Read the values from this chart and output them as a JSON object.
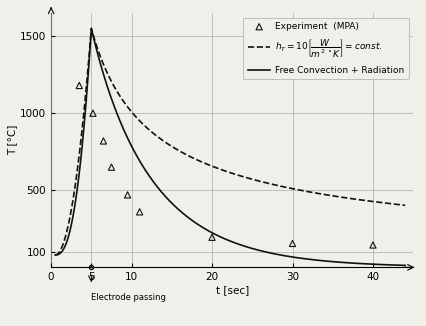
{
  "title": "",
  "xlabel": "t [sec]",
  "ylabel": "T [°C]",
  "xlim": [
    0,
    45
  ],
  "ylim": [
    0,
    1650
  ],
  "xticks": [
    0,
    5,
    10,
    20,
    30,
    40
  ],
  "yticks": [
    100,
    500,
    1000,
    1500
  ],
  "grid_color": "#aaaaaa",
  "background_color": "#f0f0eb",
  "experiment_x": [
    3.5,
    5.2,
    6.5,
    7.5,
    9.5,
    11.0,
    20.0,
    30.0,
    40.0
  ],
  "experiment_y": [
    1180,
    1000,
    820,
    650,
    470,
    360,
    195,
    155,
    145
  ],
  "electrode_x": 5.0,
  "electrode_label": "Electrode passing",
  "legend_triangle_label": "Experiment  (MPA)",
  "legend_solid_label": "Free Convection + Radiation",
  "line_color": "#111111",
  "font_size": 7.5
}
